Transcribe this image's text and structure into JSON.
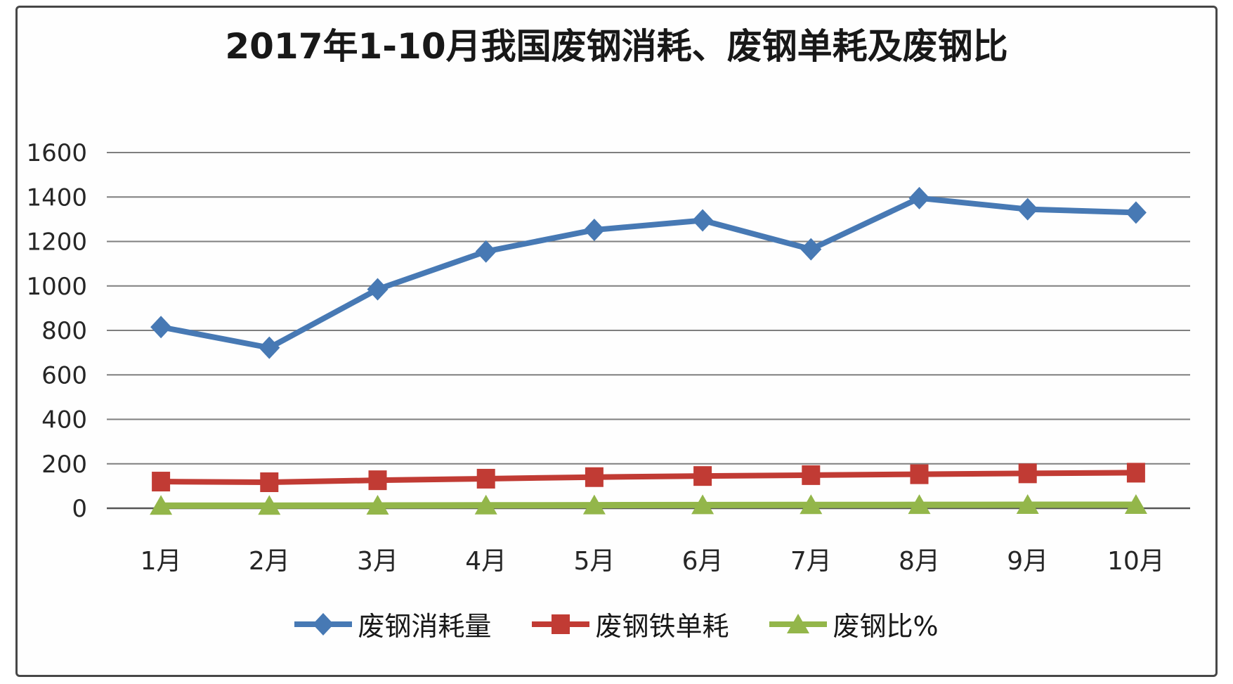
{
  "chart_data": {
    "type": "line",
    "title": "2017年1-10月我国废钢消耗、废钢单耗及废钢比",
    "categories": [
      "1月",
      "2月",
      "3月",
      "4月",
      "5月",
      "6月",
      "7月",
      "8月",
      "9月",
      "10月"
    ],
    "series": [
      {
        "name": "废钢消耗量",
        "marker": "diamond",
        "color": "#4779b4",
        "values": [
          815,
          722,
          985,
          1155,
          1252,
          1295,
          1165,
          1395,
          1345,
          1330
        ]
      },
      {
        "name": "废钢铁单耗",
        "marker": "square",
        "color": "#c13b34",
        "values": [
          120,
          117,
          126,
          133,
          140,
          145,
          149,
          153,
          157,
          160
        ]
      },
      {
        "name": "废钢比%",
        "marker": "triangle",
        "color": "#93b64a",
        "values": [
          12,
          11.7,
          12.6,
          13.3,
          14,
          14.5,
          14.9,
          15.3,
          15.7,
          16
        ]
      }
    ],
    "ylim": [
      0,
      1600
    ],
    "ytick_step": 200,
    "yticks": [
      "0",
      "200",
      "400",
      "600",
      "800",
      "1000",
      "1200",
      "1400",
      "1600"
    ],
    "xlabel": "",
    "ylabel": "",
    "grid": true,
    "legend_position": "bottom"
  },
  "colors": {
    "gridline": "#7f7f7f",
    "axis_line": "#565656",
    "tick_text": "#262626",
    "frame_border": "#474747",
    "background": "#ffffff"
  }
}
